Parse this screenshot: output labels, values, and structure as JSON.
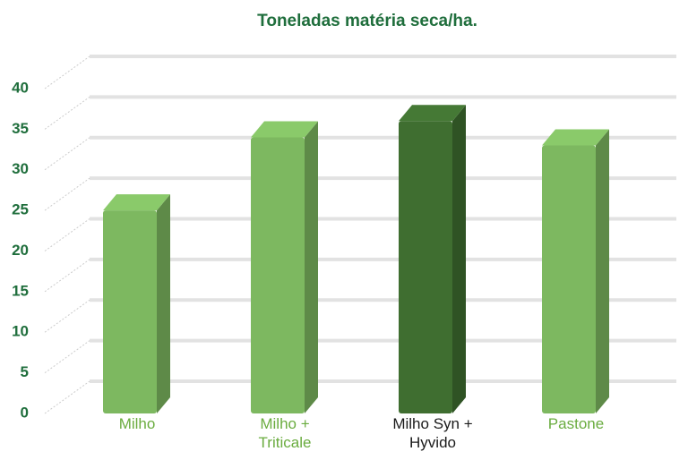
{
  "chart_data": {
    "type": "bar3d",
    "title": "Toneladas matéria seca/ha.",
    "categories": [
      "Milho",
      "Milho + Triticale",
      "Milho Syn + Hyvido",
      "Pastone"
    ],
    "values": [
      25,
      34,
      36,
      33
    ],
    "colors": [
      "#7db860",
      "#7db860",
      "#3f6e30",
      "#7db860"
    ],
    "label_colors": [
      "#6aac3f",
      "#6aac3f",
      "#1a1a1a",
      "#6aac3f"
    ],
    "ylim": [
      0,
      40
    ],
    "yticks": [
      0,
      5,
      10,
      15,
      20,
      25,
      30,
      35,
      40
    ],
    "grid": true
  }
}
